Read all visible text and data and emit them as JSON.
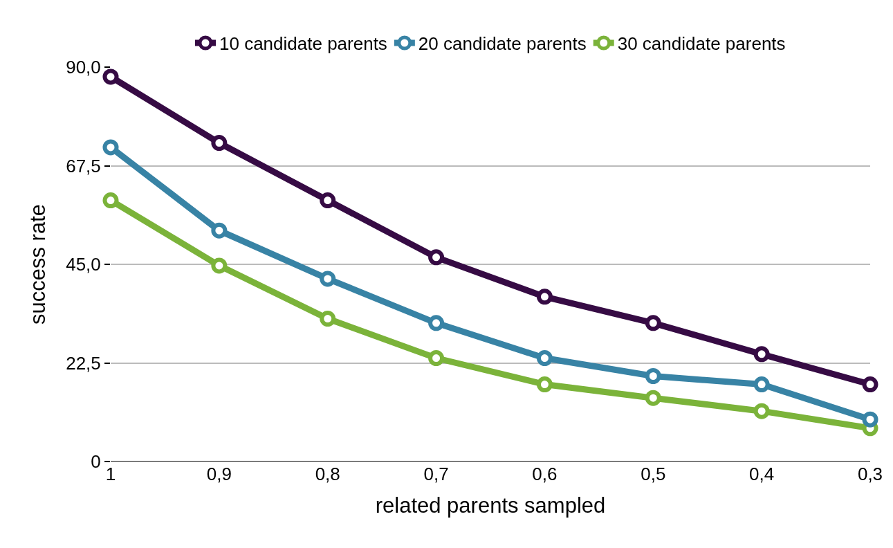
{
  "chart_data": {
    "type": "line",
    "xlabel": "related parents sampled",
    "ylabel": "success rate",
    "categories": [
      "1",
      "0,9",
      "0,8",
      "0,7",
      "0,6",
      "0,5",
      "0,4",
      "0,3"
    ],
    "series": [
      {
        "name": "10 candidate parents",
        "color": "#360b44",
        "values": [
          87.8,
          72.7,
          59.6,
          46.6,
          37.6,
          31.6,
          24.5,
          17.6
        ]
      },
      {
        "name": "20 candidate parents",
        "color": "#3883a5",
        "values": [
          71.7,
          52.7,
          41.7,
          31.6,
          23.6,
          19.5,
          17.6,
          9.6
        ]
      },
      {
        "name": "30 candidate parents",
        "color": "#7bb33a",
        "values": [
          59.6,
          44.7,
          32.6,
          23.6,
          17.6,
          14.5,
          11.5,
          7.6
        ]
      }
    ],
    "ylim": [
      0,
      90
    ],
    "yticks": [
      0,
      {
        "value": 22.5,
        "label": "22,5"
      },
      {
        "value": 45,
        "label": "45,0"
      },
      {
        "value": 67.5,
        "label": "67,5"
      },
      {
        "value": 90,
        "label": "90,0"
      }
    ],
    "grid": "y",
    "legend": "top",
    "marker": "circle",
    "line_style": "solid"
  }
}
